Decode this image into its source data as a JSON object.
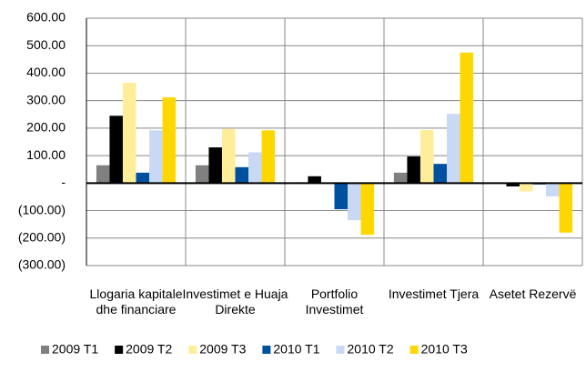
{
  "chart_data": {
    "type": "bar",
    "categories": [
      "Llogaria kapitale dhe financiare",
      "Investimet e Huaja Direkte",
      "Portfolio Investimet",
      "Investimet Tjera",
      "Asetet Rezervë"
    ],
    "series": [
      {
        "name": "2009 T1",
        "color": "#808080",
        "values": [
          65,
          65,
          3,
          38,
          0
        ]
      },
      {
        "name": "2009 T2",
        "color": "#000000",
        "values": [
          245,
          130,
          25,
          97,
          -12
        ]
      },
      {
        "name": "2009 T3",
        "color": "#ffee99",
        "values": [
          365,
          197,
          0,
          193,
          -30
        ]
      },
      {
        "name": "2010 T1",
        "color": "#0050a0",
        "values": [
          38,
          58,
          -95,
          70,
          -5
        ]
      },
      {
        "name": "2010 T2",
        "color": "#c8d8f5",
        "values": [
          192,
          112,
          -135,
          252,
          -48
        ]
      },
      {
        "name": "2010 T3",
        "color": "#ffd700",
        "values": [
          312,
          192,
          -188,
          475,
          -180
        ]
      }
    ],
    "ylim": [
      -300,
      600
    ],
    "yticks": [
      {
        "value": -300,
        "label": "(300.00)"
      },
      {
        "value": -200,
        "label": "(200.00)"
      },
      {
        "value": -100,
        "label": "(100.00)"
      },
      {
        "value": 0,
        "label": "-"
      },
      {
        "value": 100,
        "label": "100.00"
      },
      {
        "value": 200,
        "label": "200.00"
      },
      {
        "value": 300,
        "label": "300.00"
      },
      {
        "value": 400,
        "label": "400.00"
      },
      {
        "value": 500,
        "label": "500.00"
      },
      {
        "value": 600,
        "label": "600.00"
      }
    ],
    "grid": true,
    "legend": "bottom"
  }
}
